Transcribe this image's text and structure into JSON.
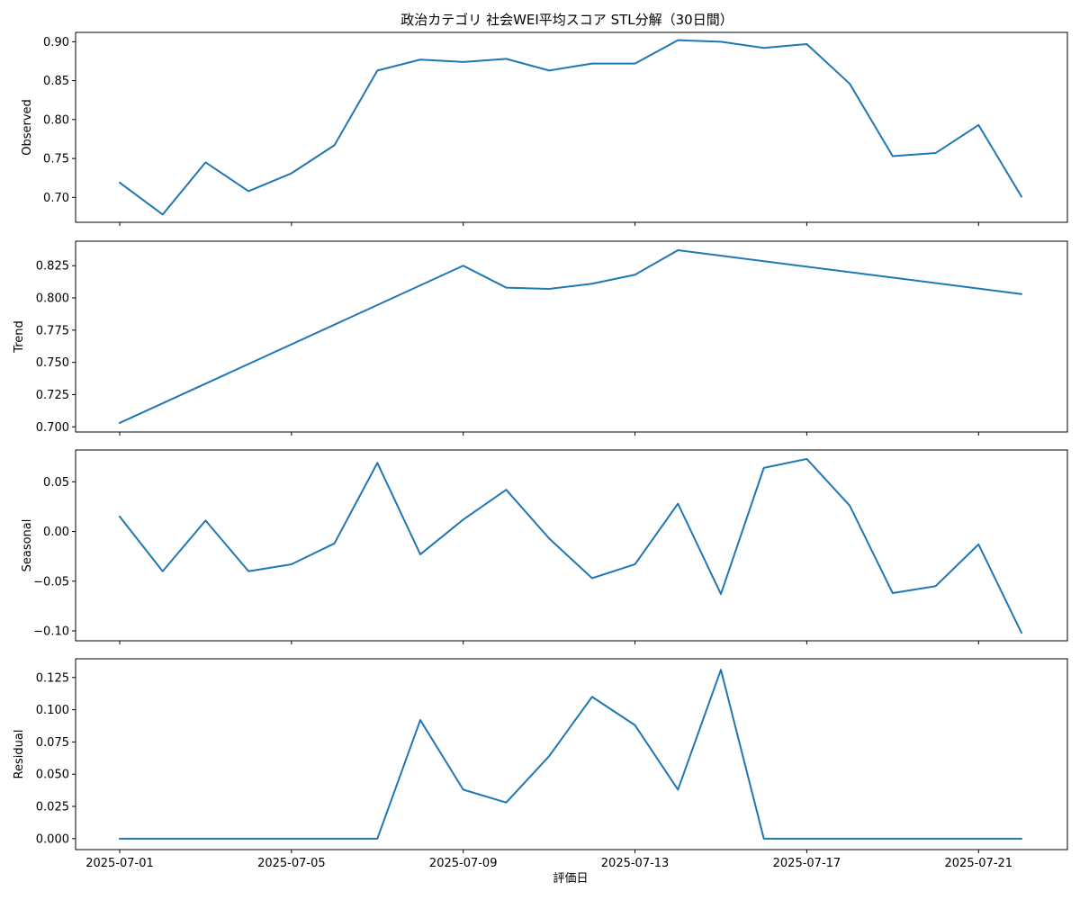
{
  "title": "政治カテゴリ 社会WEI平均スコア STL分解（30日間）",
  "xlabel": "評価日",
  "line_color": "#1f77b4",
  "chart_data": {
    "type": "line",
    "title": "政治カテゴリ 社会WEI平均スコア STL分解（30日間）",
    "xlabel": "評価日",
    "grid": false,
    "x": [
      "2025-07-01",
      "2025-07-02",
      "2025-07-03",
      "2025-07-04",
      "2025-07-05",
      "2025-07-06",
      "2025-07-07",
      "2025-07-08",
      "2025-07-09",
      "2025-07-10",
      "2025-07-11",
      "2025-07-12",
      "2025-07-13",
      "2025-07-14",
      "2025-07-15",
      "2025-07-16",
      "2025-07-17",
      "2025-07-18",
      "2025-07-19",
      "2025-07-20",
      "2025-07-21",
      "2025-07-22"
    ],
    "x_tick_labels": [
      "2025-07-01",
      "2025-07-05",
      "2025-07-09",
      "2025-07-13",
      "2025-07-17",
      "2025-07-21"
    ],
    "panels": [
      {
        "ylabel": "Observed",
        "ylim": [
          0.668,
          0.912
        ],
        "yticks": [
          "0.70",
          "0.75",
          "0.80",
          "0.85",
          "0.90"
        ],
        "values": [
          0.719,
          0.678,
          0.745,
          0.708,
          0.731,
          0.767,
          0.863,
          0.877,
          0.874,
          0.878,
          0.863,
          0.872,
          0.872,
          0.902,
          0.9,
          0.892,
          0.897,
          0.846,
          0.753,
          0.757,
          0.793,
          0.701
        ]
      },
      {
        "ylabel": "Trend",
        "ylim": [
          0.696,
          0.844
        ],
        "yticks": [
          "0.700",
          "0.725",
          "0.750",
          "0.775",
          "0.800",
          "0.825"
        ],
        "x_index": [
          0,
          8,
          9,
          10,
          11,
          12,
          13,
          21
        ],
        "values": [
          0.703,
          0.825,
          0.808,
          0.807,
          0.811,
          0.818,
          0.837,
          0.803
        ]
      },
      {
        "ylabel": "Seasonal",
        "ylim": [
          -0.11,
          0.082
        ],
        "yticks": [
          "−0.10",
          "−0.05",
          "0.00",
          "0.05"
        ],
        "values": [
          0.015,
          -0.04,
          0.011,
          -0.04,
          -0.033,
          -0.012,
          0.069,
          -0.023,
          0.012,
          0.042,
          -0.007,
          -0.047,
          -0.033,
          0.028,
          -0.063,
          0.064,
          0.073,
          0.026,
          -0.062,
          -0.055,
          -0.013,
          -0.102
        ]
      },
      {
        "ylabel": "Residual",
        "ylim": [
          -0.0085,
          0.1395
        ],
        "yticks": [
          "0.000",
          "0.025",
          "0.050",
          "0.075",
          "0.100",
          "0.125"
        ],
        "values": [
          0,
          0,
          0,
          0,
          0,
          0,
          0,
          0.092,
          0.038,
          0.028,
          0.064,
          0.11,
          0.088,
          0.038,
          0.131,
          0,
          0,
          0,
          0,
          0,
          0,
          0
        ]
      }
    ]
  }
}
